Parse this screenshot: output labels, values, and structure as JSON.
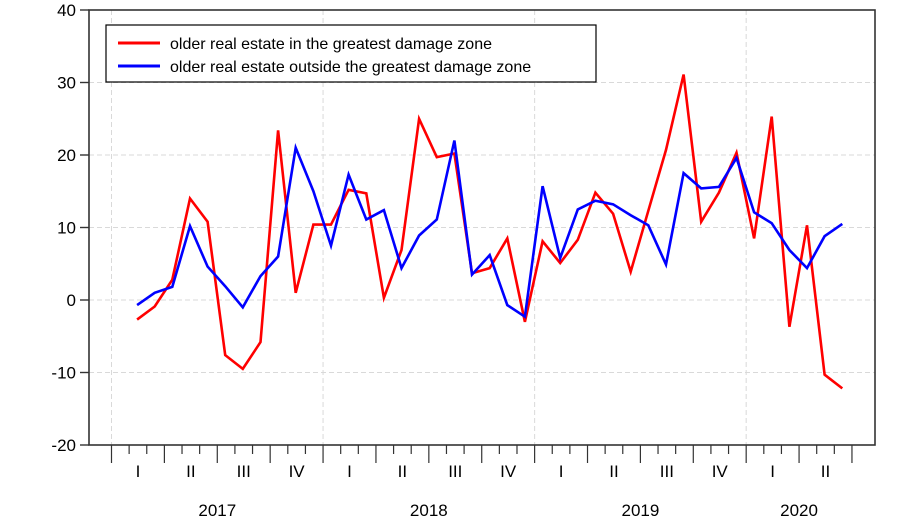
{
  "chart_data": {
    "type": "line",
    "title": "",
    "xlabel": "",
    "ylabel": "",
    "frequency": "monthly",
    "start": "2017-01",
    "end": "2020-05",
    "ylim": [
      -20,
      40
    ],
    "yticks": [
      -20,
      -10,
      0,
      10,
      20,
      30,
      40
    ],
    "ytick_labels": [
      "-20",
      "-10",
      "0",
      "10",
      "20",
      "30",
      "40"
    ],
    "x_axis_range": [
      "2017-01",
      "2020-06"
    ],
    "quarter_labels": [
      "I",
      "II",
      "III",
      "IV"
    ],
    "years": [
      {
        "label": "2017",
        "quarters": [
          "I",
          "II",
          "III",
          "IV"
        ]
      },
      {
        "label": "2018",
        "quarters": [
          "I",
          "II",
          "III",
          "IV"
        ]
      },
      {
        "label": "2019",
        "quarters": [
          "I",
          "II",
          "III",
          "IV"
        ]
      },
      {
        "label": "2020",
        "quarters": [
          "I",
          "II"
        ]
      }
    ],
    "grid": true,
    "legend_position": "top-left",
    "series": [
      {
        "name": "older real estate in the greatest damage zone",
        "color": "#ff0000",
        "values": [
          -2.7,
          -0.9,
          2.8,
          14.0,
          10.8,
          -7.6,
          -9.5,
          -5.8,
          23.4,
          1.0,
          10.4,
          10.4,
          15.2,
          14.7,
          0.3,
          6.9,
          25.0,
          19.7,
          20.2,
          3.7,
          4.4,
          8.5,
          -3.0,
          8.1,
          5.1,
          8.3,
          14.8,
          11.9,
          3.9,
          12.3,
          20.7,
          31.1,
          10.8,
          14.8,
          20.3,
          8.5,
          25.3,
          -3.7,
          10.3,
          -10.3,
          -12.2
        ]
      },
      {
        "name": "older real estate outside the greatest damage zone",
        "color": "#0000ff",
        "values": [
          -0.7,
          1.0,
          1.8,
          10.2,
          4.6,
          1.9,
          -1.0,
          3.3,
          6.0,
          21.0,
          15.0,
          7.5,
          17.3,
          11.1,
          12.4,
          4.4,
          8.9,
          11.1,
          22.0,
          3.5,
          6.2,
          -0.7,
          -2.3,
          15.7,
          5.8,
          12.5,
          13.7,
          13.2,
          11.7,
          10.3,
          4.9,
          17.5,
          15.4,
          15.6,
          19.6,
          12.1,
          10.6,
          6.9,
          4.4,
          8.8,
          10.5
        ]
      }
    ]
  }
}
